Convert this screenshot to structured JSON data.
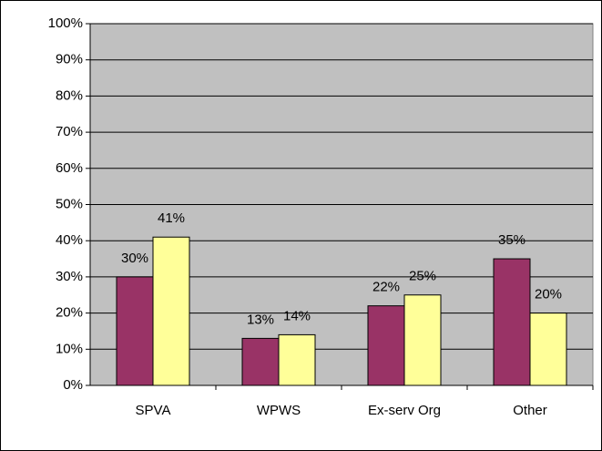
{
  "chart_data": {
    "type": "bar",
    "categories": [
      "SPVA",
      "WPWS",
      "Ex-serv Org",
      "Other"
    ],
    "series": [
      {
        "color": "#993366",
        "values": [
          30,
          13,
          22,
          35
        ],
        "value_labels": [
          "30%",
          "13%",
          "22%",
          "35%"
        ]
      },
      {
        "color": "#ffff99",
        "values": [
          41,
          14,
          25,
          20
        ],
        "value_labels": [
          "41%",
          "14%",
          "25%",
          "20%"
        ]
      }
    ],
    "ylim": [
      0,
      100
    ],
    "yticks": [
      {
        "value": 0,
        "label": "0%"
      },
      {
        "value": 10,
        "label": "10%"
      },
      {
        "value": 20,
        "label": "20%"
      },
      {
        "value": 30,
        "label": "30%"
      },
      {
        "value": 40,
        "label": "40%"
      },
      {
        "value": 50,
        "label": "50%"
      },
      {
        "value": 60,
        "label": "60%"
      },
      {
        "value": 70,
        "label": "70%"
      },
      {
        "value": 80,
        "label": "80%"
      },
      {
        "value": 90,
        "label": "90%"
      },
      {
        "value": 100,
        "label": "100%"
      }
    ],
    "grid": true,
    "plot_background": "#c0c0c0"
  }
}
